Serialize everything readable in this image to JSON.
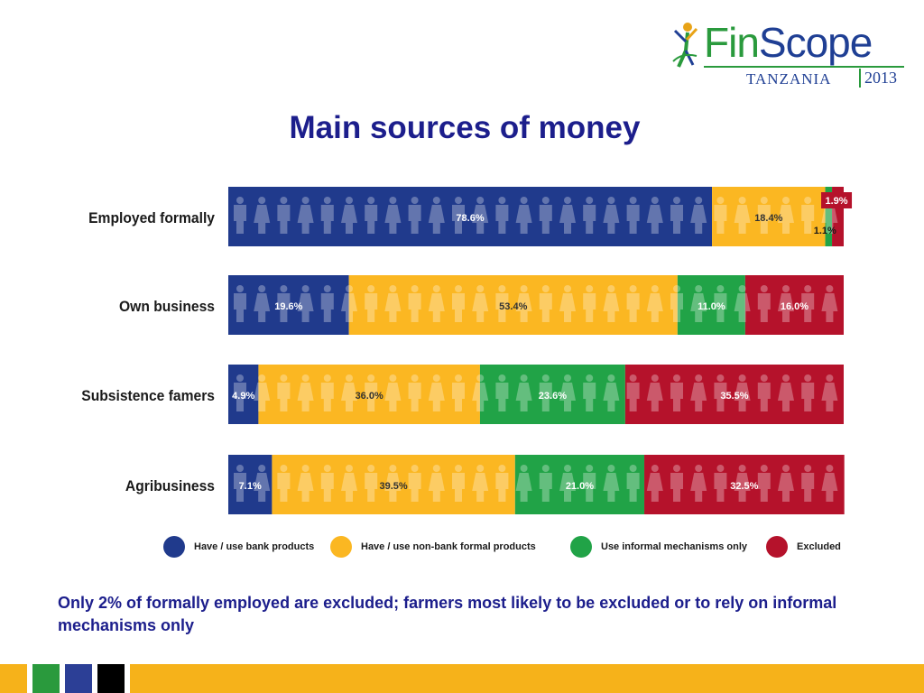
{
  "logo": {
    "fin": "Fin",
    "scope": "Scope",
    "country": "TANZANIA",
    "year": "2013"
  },
  "title": "Main sources of money",
  "caption": "Only 2% of formally employed are excluded; farmers most likely to be excluded or to rely on informal mechanisms only",
  "colors": {
    "bank": "#203a8c",
    "nonbank": "#fbb722",
    "informal": "#21a347",
    "excluded": "#b5122b"
  },
  "chart_data": {
    "type": "bar",
    "stacked": true,
    "orientation": "horizontal",
    "unit": "%",
    "categories": [
      "Employed formally",
      "Own business",
      "Subsistence famers",
      "Agribusiness"
    ],
    "series": [
      {
        "name": "Have / use bank products",
        "values": [
          78.6,
          19.6,
          4.9,
          7.1
        ]
      },
      {
        "name": "Have / use non-bank formal products",
        "values": [
          18.4,
          53.4,
          36.0,
          39.5
        ]
      },
      {
        "name": "Use informal mechanisms only",
        "values": [
          1.1,
          11.0,
          23.6,
          21.0
        ]
      },
      {
        "name": "Excluded",
        "values": [
          1.9,
          16.0,
          35.5,
          32.5
        ]
      }
    ],
    "data_labels": [
      [
        "78.6%",
        "18.4%",
        "1.1%",
        "1.9%"
      ],
      [
        "19.6%",
        "53.4%",
        "11.0%",
        "16.0%"
      ],
      [
        "4.9%",
        "36.0%",
        "23.6%",
        "35.5%"
      ],
      [
        "7.1%",
        "39.5%",
        "21.0%",
        "32.5%"
      ]
    ],
    "legend_position": "bottom",
    "xlim": [
      0,
      100
    ]
  }
}
